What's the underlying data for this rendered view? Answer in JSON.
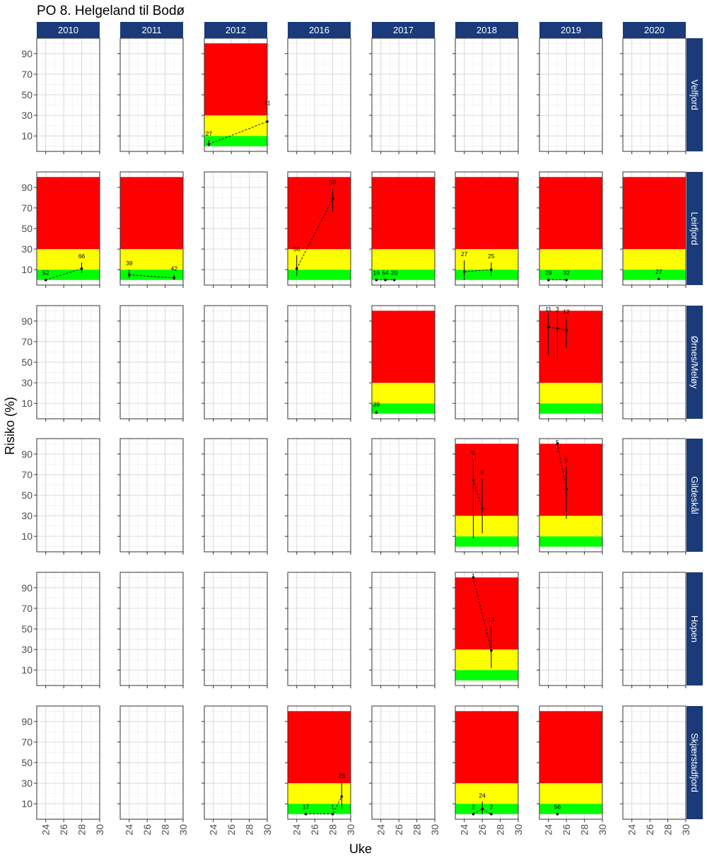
{
  "chart_data": {
    "type": "line",
    "title": "PO 8. Helgeland til Bodø",
    "xlabel": "Uke",
    "ylabel": "Risiko (%)",
    "xlim": [
      23,
      30
    ],
    "ylim": [
      -5,
      105
    ],
    "x_ticks": [
      24,
      26,
      28,
      30
    ],
    "y_ticks": [
      10,
      30,
      50,
      70,
      90
    ],
    "grid": true,
    "zone_colors": {
      "green": "#00ff00",
      "yellow": "#ffff00",
      "red": "#ff0000"
    },
    "zones": [
      {
        "color": "green",
        "from": 0,
        "to": 10
      },
      {
        "color": "yellow",
        "from": 10,
        "to": 30
      },
      {
        "color": "red",
        "from": 30,
        "to": 100
      }
    ],
    "strip_color": "#1a3a7a",
    "columns": [
      "2010",
      "2011",
      "2012",
      "2016",
      "2017",
      "2018",
      "2019",
      "2020"
    ],
    "rows": [
      "Velfjord",
      "Leirfjord",
      "Ørnes/Meløy",
      "Gildeskål",
      "Hopen",
      "Skjærstadfjord"
    ],
    "panels": [
      {
        "row": "Velfjord",
        "col": "2012",
        "points": [
          {
            "x": 23.5,
            "y": 2,
            "ymin": 0,
            "ymax": 6,
            "label": "27"
          },
          {
            "x": 30,
            "y": 24,
            "ymin": 16,
            "ymax": 36,
            "label": "41"
          }
        ]
      },
      {
        "row": "Leirfjord",
        "col": "2010",
        "points": [
          {
            "x": 24,
            "y": 0,
            "ymin": 0,
            "ymax": 1,
            "label": "52"
          },
          {
            "x": 28,
            "y": 11,
            "ymin": 7,
            "ymax": 17,
            "label": "66"
          }
        ]
      },
      {
        "row": "Leirfjord",
        "col": "2011",
        "points": [
          {
            "x": 24,
            "y": 5,
            "ymin": 2,
            "ymax": 10,
            "label": "39"
          },
          {
            "x": 29,
            "y": 2,
            "ymin": 0,
            "ymax": 5,
            "label": "42"
          }
        ]
      },
      {
        "row": "Leirfjord",
        "col": "2016",
        "points": [
          {
            "x": 24,
            "y": 11,
            "ymin": 4,
            "ymax": 24,
            "label": "56"
          },
          {
            "x": 28,
            "y": 79,
            "ymin": 66,
            "ymax": 89,
            "label": "50"
          }
        ]
      },
      {
        "row": "Leirfjord",
        "col": "2017",
        "points": [
          {
            "x": 23.5,
            "y": 0,
            "ymin": 0,
            "ymax": 1,
            "label": "16"
          },
          {
            "x": 24.5,
            "y": 0,
            "ymin": 0,
            "ymax": 1,
            "label": "54"
          },
          {
            "x": 25.5,
            "y": 0,
            "ymin": 0,
            "ymax": 1,
            "label": "20"
          }
        ]
      },
      {
        "row": "Leirfjord",
        "col": "2018",
        "points": [
          {
            "x": 24,
            "y": 8,
            "ymin": 0,
            "ymax": 19,
            "label": "27"
          },
          {
            "x": 27,
            "y": 10,
            "ymin": 4,
            "ymax": 17,
            "label": "25"
          }
        ]
      },
      {
        "row": "Leirfjord",
        "col": "2019",
        "points": [
          {
            "x": 24,
            "y": 0,
            "ymin": 0,
            "ymax": 1,
            "label": "29"
          },
          {
            "x": 26,
            "y": 0,
            "ymin": 0,
            "ymax": 1,
            "label": "32"
          }
        ]
      },
      {
        "row": "Leirfjord",
        "col": "2020",
        "points": [
          {
            "x": 27,
            "y": 1,
            "ymin": 0,
            "ymax": 2,
            "label": "27"
          }
        ]
      },
      {
        "row": "Ørnes/Meløy",
        "col": "2017",
        "points": [
          {
            "x": 23.5,
            "y": 1,
            "ymin": 0,
            "ymax": 3,
            "label": "39"
          }
        ]
      },
      {
        "row": "Ørnes/Meløy",
        "col": "2019",
        "points": [
          {
            "x": 24,
            "y": 84,
            "ymin": 57,
            "ymax": 98,
            "label": "11"
          },
          {
            "x": 25,
            "y": 83,
            "ymin": 52,
            "ymax": 99,
            "label": "3"
          },
          {
            "x": 26,
            "y": 81,
            "ymin": 64,
            "ymax": 93,
            "label": "12"
          }
        ]
      },
      {
        "row": "Gildeskål",
        "col": "2018",
        "points": [
          {
            "x": 25,
            "y": 65,
            "ymin": 8,
            "ymax": 85,
            "label": "5"
          },
          {
            "x": 26,
            "y": 37,
            "ymin": 13,
            "ymax": 66,
            "label": "8"
          }
        ]
      },
      {
        "row": "Gildeskål",
        "col": "2019",
        "points": [
          {
            "x": 25,
            "y": 100,
            "ymin": 98,
            "ymax": 100,
            "label": "5"
          },
          {
            "x": 26,
            "y": 56,
            "ymin": 27,
            "ymax": 78,
            "label": "9"
          }
        ]
      },
      {
        "row": "Hopen",
        "col": "2018",
        "points": [
          {
            "x": 25,
            "y": 100,
            "ymin": 99,
            "ymax": 100,
            "label": "1"
          },
          {
            "x": 27,
            "y": 29,
            "ymin": 12,
            "ymax": 53,
            "label": "13"
          }
        ]
      },
      {
        "row": "Skjærstadfjord",
        "col": "2016",
        "points": [
          {
            "x": 25,
            "y": 0,
            "ymin": 0,
            "ymax": 1,
            "label": "17"
          },
          {
            "x": 28,
            "y": 0,
            "ymin": 0,
            "ymax": 1,
            "label": "1"
          },
          {
            "x": 29,
            "y": 17,
            "ymin": 5,
            "ymax": 31,
            "label": "23"
          }
        ]
      },
      {
        "row": "Skjærstadfjord",
        "col": "2018",
        "points": [
          {
            "x": 25,
            "y": 0,
            "ymin": 0,
            "ymax": 1,
            "label": "2"
          },
          {
            "x": 26,
            "y": 5,
            "ymin": 0,
            "ymax": 12,
            "label": "24"
          },
          {
            "x": 27,
            "y": 0,
            "ymin": 0,
            "ymax": 1,
            "label": "2"
          }
        ]
      },
      {
        "row": "Skjærstadfjord",
        "col": "2019",
        "points": [
          {
            "x": 25,
            "y": 0,
            "ymin": 0,
            "ymax": 1,
            "label": "56"
          }
        ]
      }
    ]
  }
}
